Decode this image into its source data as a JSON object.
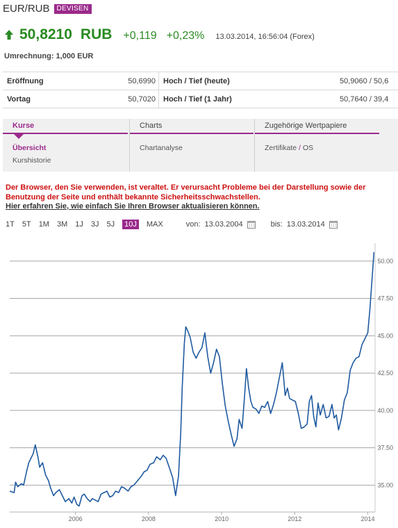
{
  "header": {
    "title": "EUR/RUB",
    "badge": "DEVISEN"
  },
  "quote": {
    "price": "50,8210",
    "currency": "RUB",
    "change": "+0,119",
    "change_pct": "+0,23%",
    "timestamp": "13.03.2014, 16:56:04 (Forex)",
    "direction_icon": "arrow-up-icon",
    "color_up": "#2a8a22"
  },
  "conversion": "Umrechnung: 1,000 EUR",
  "table": {
    "rows": [
      {
        "label1": "Eröffnung",
        "value1": "50,6990",
        "label2": "Hoch / Tief (heute)",
        "value2": "50,9060 / 50,6"
      },
      {
        "label1": "Vortag",
        "value1": "50,7020",
        "label2": "Hoch / Tief (1 Jahr)",
        "value2": "50,7640 / 39,4"
      }
    ]
  },
  "nav": {
    "accent": "#9b2a8b",
    "tabs": [
      {
        "label": "Kurse",
        "items": [
          "Übersicht",
          "Kurshistorie"
        ]
      },
      {
        "label": "Charts",
        "items": [
          "Chartanalyse"
        ]
      },
      {
        "label": "Zugehörige Wertpapiere",
        "items": [
          "Zertifikate",
          "/",
          "OS"
        ]
      }
    ]
  },
  "warning": {
    "line1": "Der Browser, den Sie verwenden, ist veraltet. Er verursacht Probleme bei der Darstellung sowie der Benutzung der Seite und enthält bekannte Sicherheitsschwachstellen.",
    "line2": "Hier erfahren Sie, wie einfach Sie Ihren Browser aktualisieren können."
  },
  "ranges": {
    "options": [
      "1T",
      "5T",
      "1M",
      "3M",
      "1J",
      "3J",
      "5J",
      "10J",
      "MAX"
    ],
    "selected": "10J",
    "from_label": "von:",
    "from_value": "13.03.2004",
    "to_label": "bis:",
    "to_value": "13.03.2014",
    "calendar_icon": "calendar-icon"
  },
  "chart_data": {
    "type": "line",
    "title": "",
    "xlabel": "",
    "ylabel": "",
    "xlim": [
      2004.2,
      2014.2
    ],
    "ylim": [
      33.2,
      51.2
    ],
    "x_ticks": [
      "2006",
      "2008",
      "2010",
      "2012",
      "2014"
    ],
    "y_ticks": [
      "35.00",
      "37.50",
      "40.00",
      "42.50",
      "45.00",
      "47.50",
      "50.00"
    ],
    "grid": "horizontal",
    "axis_side": "right",
    "series_color": "#1f5aa0",
    "x": [
      2004.2,
      2004.32,
      2004.36,
      2004.42,
      2004.52,
      2004.58,
      2004.66,
      2004.72,
      2004.84,
      2004.9,
      2004.98,
      2005.02,
      2005.1,
      2005.18,
      2005.26,
      2005.32,
      2005.4,
      2005.46,
      2005.56,
      2005.64,
      2005.72,
      2005.82,
      2005.9,
      2005.96,
      2006.04,
      2006.1,
      2006.18,
      2006.24,
      2006.32,
      2006.4,
      2006.46,
      2006.54,
      2006.62,
      2006.7,
      2006.78,
      2006.86,
      2006.94,
      2007.02,
      2007.1,
      2007.18,
      2007.26,
      2007.34,
      2007.44,
      2007.52,
      2007.6,
      2007.7,
      2007.8,
      2007.88,
      2007.96,
      2008.04,
      2008.14,
      2008.22,
      2008.32,
      2008.4,
      2008.48,
      2008.58,
      2008.66,
      2008.74,
      2008.82,
      2008.88,
      2008.92,
      2008.98,
      2009.02,
      2009.06,
      2009.14,
      2009.22,
      2009.3,
      2009.38,
      2009.46,
      2009.54,
      2009.62,
      2009.7,
      2009.78,
      2009.86,
      2009.94,
      2010.02,
      2010.1,
      2010.18,
      2010.26,
      2010.34,
      2010.42,
      2010.48,
      2010.56,
      2010.62,
      2010.68,
      2010.74,
      2010.8,
      2010.86,
      2010.94,
      2011.02,
      2011.1,
      2011.18,
      2011.26,
      2011.34,
      2011.42,
      2011.5,
      2011.58,
      2011.66,
      2011.74,
      2011.8,
      2011.86,
      2011.94,
      2012.02,
      2012.1,
      2012.18,
      2012.26,
      2012.34,
      2012.4,
      2012.46,
      2012.52,
      2012.58,
      2012.64,
      2012.7,
      2012.78,
      2012.86,
      2012.94,
      2013.02,
      2013.08,
      2013.14,
      2013.2,
      2013.28,
      2013.36,
      2013.44,
      2013.52,
      2013.6,
      2013.68,
      2013.76,
      2013.84,
      2013.92,
      2014.0,
      2014.06,
      2014.12,
      2014.17
    ],
    "values": [
      34.6,
      34.5,
      35.2,
      34.9,
      35.1,
      35.0,
      35.9,
      36.5,
      37.1,
      37.7,
      36.8,
      36.2,
      36.5,
      35.7,
      35.3,
      34.8,
      34.3,
      34.5,
      34.7,
      34.3,
      33.9,
      34.1,
      33.8,
      34.2,
      33.7,
      33.6,
      34.3,
      34.4,
      34.1,
      33.9,
      34.1,
      34.0,
      33.9,
      34.4,
      34.5,
      34.6,
      34.2,
      34.3,
      34.6,
      34.5,
      34.9,
      34.8,
      34.6,
      34.9,
      35.0,
      35.3,
      35.6,
      35.9,
      36.0,
      36.4,
      36.5,
      36.9,
      36.7,
      37.0,
      36.8,
      36.1,
      35.5,
      34.3,
      35.6,
      38.5,
      41.5,
      44.5,
      45.6,
      45.4,
      44.9,
      43.9,
      43.5,
      43.9,
      44.2,
      45.2,
      43.6,
      42.5,
      43.2,
      44.1,
      43.6,
      41.8,
      40.3,
      39.3,
      38.4,
      37.6,
      38.1,
      39.4,
      38.8,
      40.7,
      42.8,
      41.5,
      40.6,
      40.2,
      40.1,
      39.8,
      40.3,
      40.2,
      40.6,
      39.8,
      40.4,
      41.2,
      42.2,
      43.2,
      41.0,
      41.5,
      40.8,
      40.7,
      40.6,
      39.8,
      38.8,
      38.9,
      39.1,
      40.6,
      41.0,
      39.6,
      38.9,
      40.5,
      39.7,
      40.4,
      39.5,
      39.6,
      40.4,
      39.5,
      39.7,
      38.7,
      39.5,
      40.7,
      41.2,
      42.7,
      43.2,
      43.5,
      43.6,
      44.4,
      44.8,
      45.2,
      46.8,
      48.9,
      50.6
    ]
  }
}
